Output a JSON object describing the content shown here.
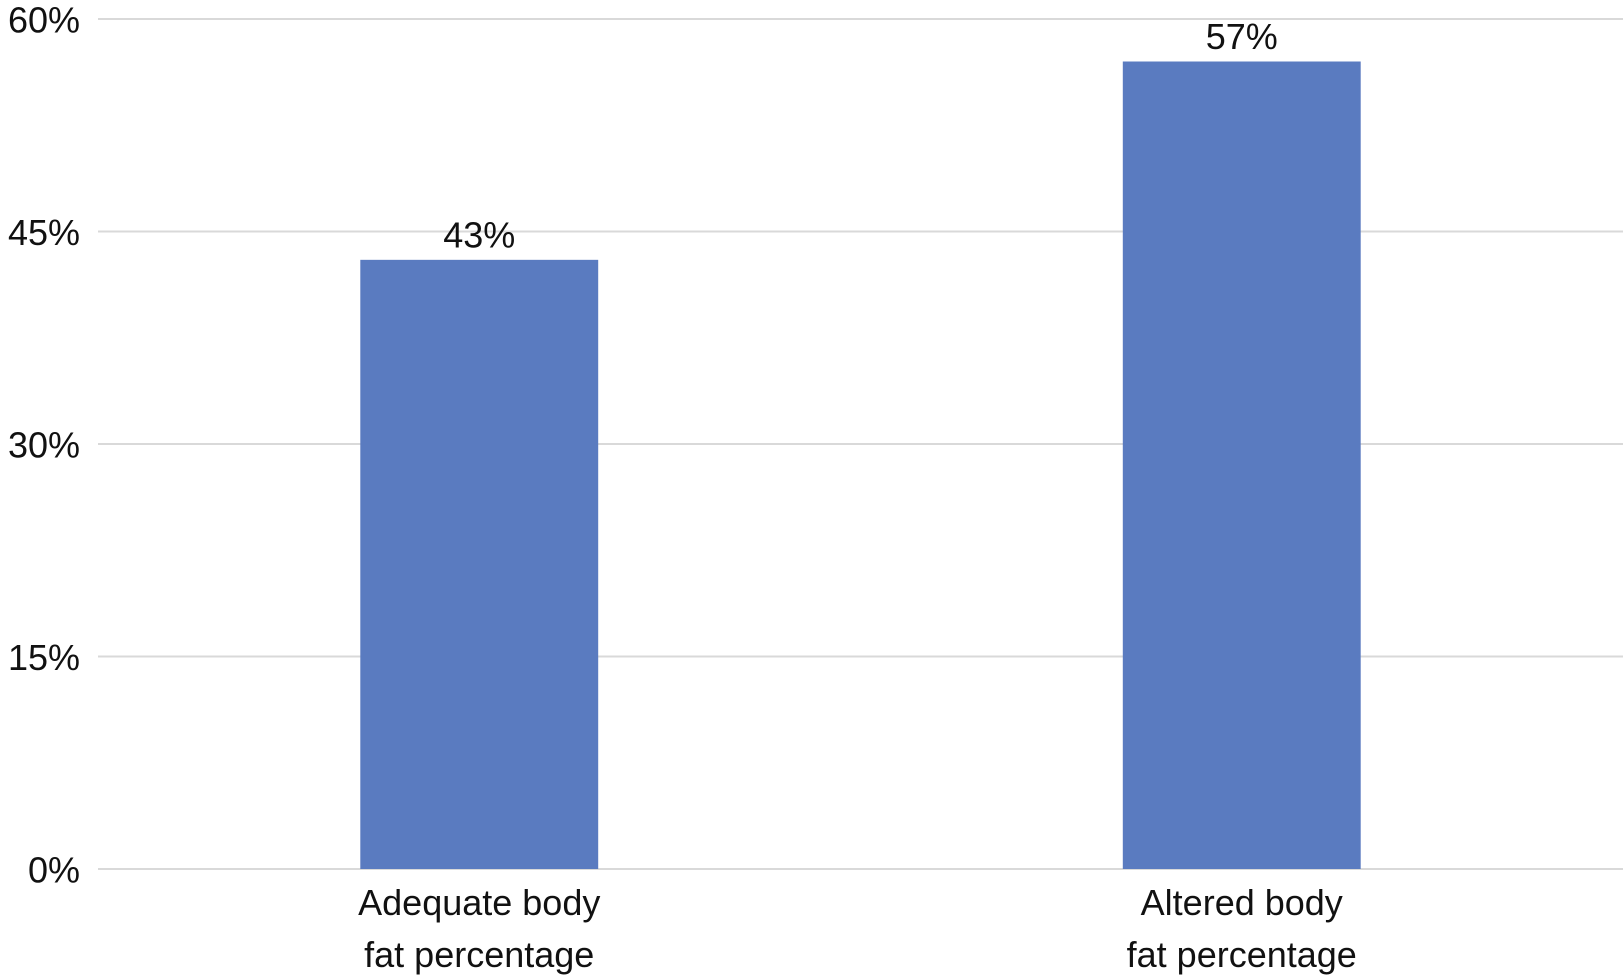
{
  "chart_data": {
    "type": "bar",
    "categories": [
      "Adequate body\nfat percentage",
      "Altered body\nfat percentage"
    ],
    "values": [
      43,
      57
    ],
    "value_labels": [
      "43%",
      "57%"
    ],
    "color": "#5a7bc0",
    "ylim": [
      0,
      60
    ],
    "yticks": [
      {
        "value": 0,
        "label": "0%"
      },
      {
        "value": 15,
        "label": "15%"
      },
      {
        "value": 30,
        "label": "30%"
      },
      {
        "value": 45,
        "label": "45%"
      },
      {
        "value": 60,
        "label": "60%"
      }
    ],
    "grid": true
  }
}
